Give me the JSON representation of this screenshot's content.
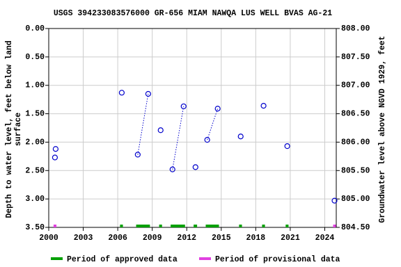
{
  "chart_data": {
    "type": "scatter",
    "title": "USGS 394233083576000 GR-656 MIAM NAWQA LUS WELL BVAS AG-21",
    "ylabel": [
      "Depth to water level, feet below land",
      "surface"
    ],
    "y2label": "Groundwater level above NGVD 1929, feet",
    "xlim": [
      2000,
      2025
    ],
    "xticks": [
      2000,
      2003,
      2006,
      2009,
      2012,
      2015,
      2018,
      2021,
      2024
    ],
    "ylim": [
      3.5,
      0
    ],
    "yticks": [
      {
        "value": 0,
        "label": "0.00"
      },
      {
        "value": 0.5,
        "label": "0.50"
      },
      {
        "value": 1,
        "label": "1.00"
      },
      {
        "value": 1.5,
        "label": "1.50"
      },
      {
        "value": 2,
        "label": "2.00"
      },
      {
        "value": 2.5,
        "label": "2.50"
      },
      {
        "value": 3,
        "label": "3.00"
      },
      {
        "value": 3.5,
        "label": "3.50"
      }
    ],
    "y2lim": [
      804.5,
      808
    ],
    "y2ticks": [
      {
        "value": 808,
        "label": "808.00"
      },
      {
        "value": 807.5,
        "label": "807.50"
      },
      {
        "value": 807,
        "label": "807.00"
      },
      {
        "value": 806.5,
        "label": "806.50"
      },
      {
        "value": 806,
        "label": "806.00"
      },
      {
        "value": 805.5,
        "label": "805.50"
      },
      {
        "value": 805,
        "label": "805.00"
      },
      {
        "value": 804.5,
        "label": "804.50"
      }
    ],
    "grid": true,
    "marker_color": "#0000cc",
    "segments": [
      {
        "x": [
          2000.54
        ],
        "values": [
          2.27
        ]
      },
      {
        "x": [
          2000.6
        ],
        "values": [
          2.12
        ]
      },
      {
        "x": [
          2006.35
        ],
        "values": [
          1.13
        ]
      },
      {
        "x": [
          2007.74,
          2008.65
        ],
        "values": [
          2.22,
          1.15
        ]
      },
      {
        "x": [
          2009.73
        ],
        "values": [
          1.79
        ]
      },
      {
        "x": [
          2010.76,
          2011.73
        ],
        "values": [
          2.48,
          1.37
        ]
      },
      {
        "x": [
          2012.76
        ],
        "values": [
          2.44
        ]
      },
      {
        "x": [
          2013.78,
          2014.69
        ],
        "values": [
          1.96,
          1.41
        ]
      },
      {
        "x": [
          2016.69
        ],
        "values": [
          1.9
        ]
      },
      {
        "x": [
          2018.68
        ],
        "values": [
          1.36
        ]
      },
      {
        "x": [
          2020.74
        ],
        "values": [
          2.07
        ]
      },
      {
        "x": [
          2024.85
        ],
        "values": [
          3.03
        ]
      }
    ],
    "series": [
      {
        "name": "Period of approved data",
        "color": "#00a000",
        "periods": [
          [
            2006.2,
            2006.45
          ],
          [
            2007.6,
            2008.8
          ],
          [
            2009.6,
            2009.85
          ],
          [
            2010.6,
            2011.85
          ],
          [
            2012.6,
            2012.9
          ],
          [
            2013.65,
            2014.8
          ],
          [
            2016.55,
            2016.8
          ],
          [
            2018.55,
            2018.8
          ],
          [
            2020.6,
            2020.85
          ]
        ]
      },
      {
        "name": "Period of provisional data",
        "color": "#e040e0",
        "periods": [
          [
            2000.42,
            2000.67
          ],
          [
            2024.73,
            2024.97
          ]
        ]
      }
    ]
  }
}
